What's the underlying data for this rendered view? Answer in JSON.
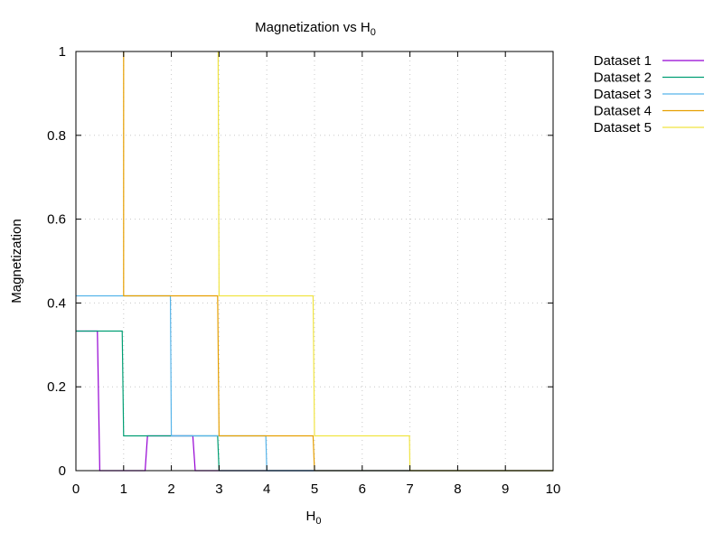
{
  "chart_data": {
    "type": "line",
    "title_main": "Magnetization vs H",
    "title_sub": "0",
    "xlabel_main": "H",
    "xlabel_sub": "0",
    "ylabel": "Magnetization",
    "xlim": [
      0,
      10
    ],
    "ylim": [
      0,
      1
    ],
    "x_ticks": [
      "0",
      "1",
      "2",
      "3",
      "4",
      "5",
      "6",
      "7",
      "8",
      "9",
      "10"
    ],
    "y_ticks": [
      "0",
      "0.2",
      "0.4",
      "0.6",
      "0.8",
      "1"
    ],
    "grid": true,
    "legend_position": "top-right outside",
    "series": [
      {
        "name": "Dataset 1",
        "color": "#9400d3",
        "points": [
          [
            0,
            0.333
          ],
          [
            0.45,
            0.333
          ],
          [
            0.5,
            0
          ],
          [
            1.45,
            0
          ],
          [
            1.5,
            0.083
          ],
          [
            2.45,
            0.083
          ],
          [
            2.5,
            0
          ],
          [
            10,
            0
          ]
        ]
      },
      {
        "name": "Dataset 2",
        "color": "#009e73",
        "points": [
          [
            0,
            0.333
          ],
          [
            0.97,
            0.333
          ],
          [
            1,
            0.083
          ],
          [
            2.97,
            0.083
          ],
          [
            3,
            0
          ],
          [
            10,
            0
          ]
        ]
      },
      {
        "name": "Dataset 3",
        "color": "#56b4e9",
        "points": [
          [
            0,
            0.417
          ],
          [
            1.98,
            0.417
          ],
          [
            2,
            0.083
          ],
          [
            3.98,
            0.083
          ],
          [
            4,
            0
          ],
          [
            10,
            0
          ]
        ]
      },
      {
        "name": "Dataset 4",
        "color": "#e69f00",
        "points": [
          [
            1,
            1
          ],
          [
            1,
            0.417
          ],
          [
            2.97,
            0.417
          ],
          [
            3,
            0.083
          ],
          [
            4.97,
            0.083
          ],
          [
            5,
            0
          ],
          [
            10,
            0
          ]
        ]
      },
      {
        "name": "Dataset 5",
        "color": "#f0e442",
        "points": [
          [
            2.98,
            1
          ],
          [
            3,
            0.417
          ],
          [
            4.97,
            0.417
          ],
          [
            5,
            0.083
          ],
          [
            6.99,
            0.083
          ],
          [
            7,
            0
          ],
          [
            10,
            0
          ]
        ]
      }
    ]
  }
}
